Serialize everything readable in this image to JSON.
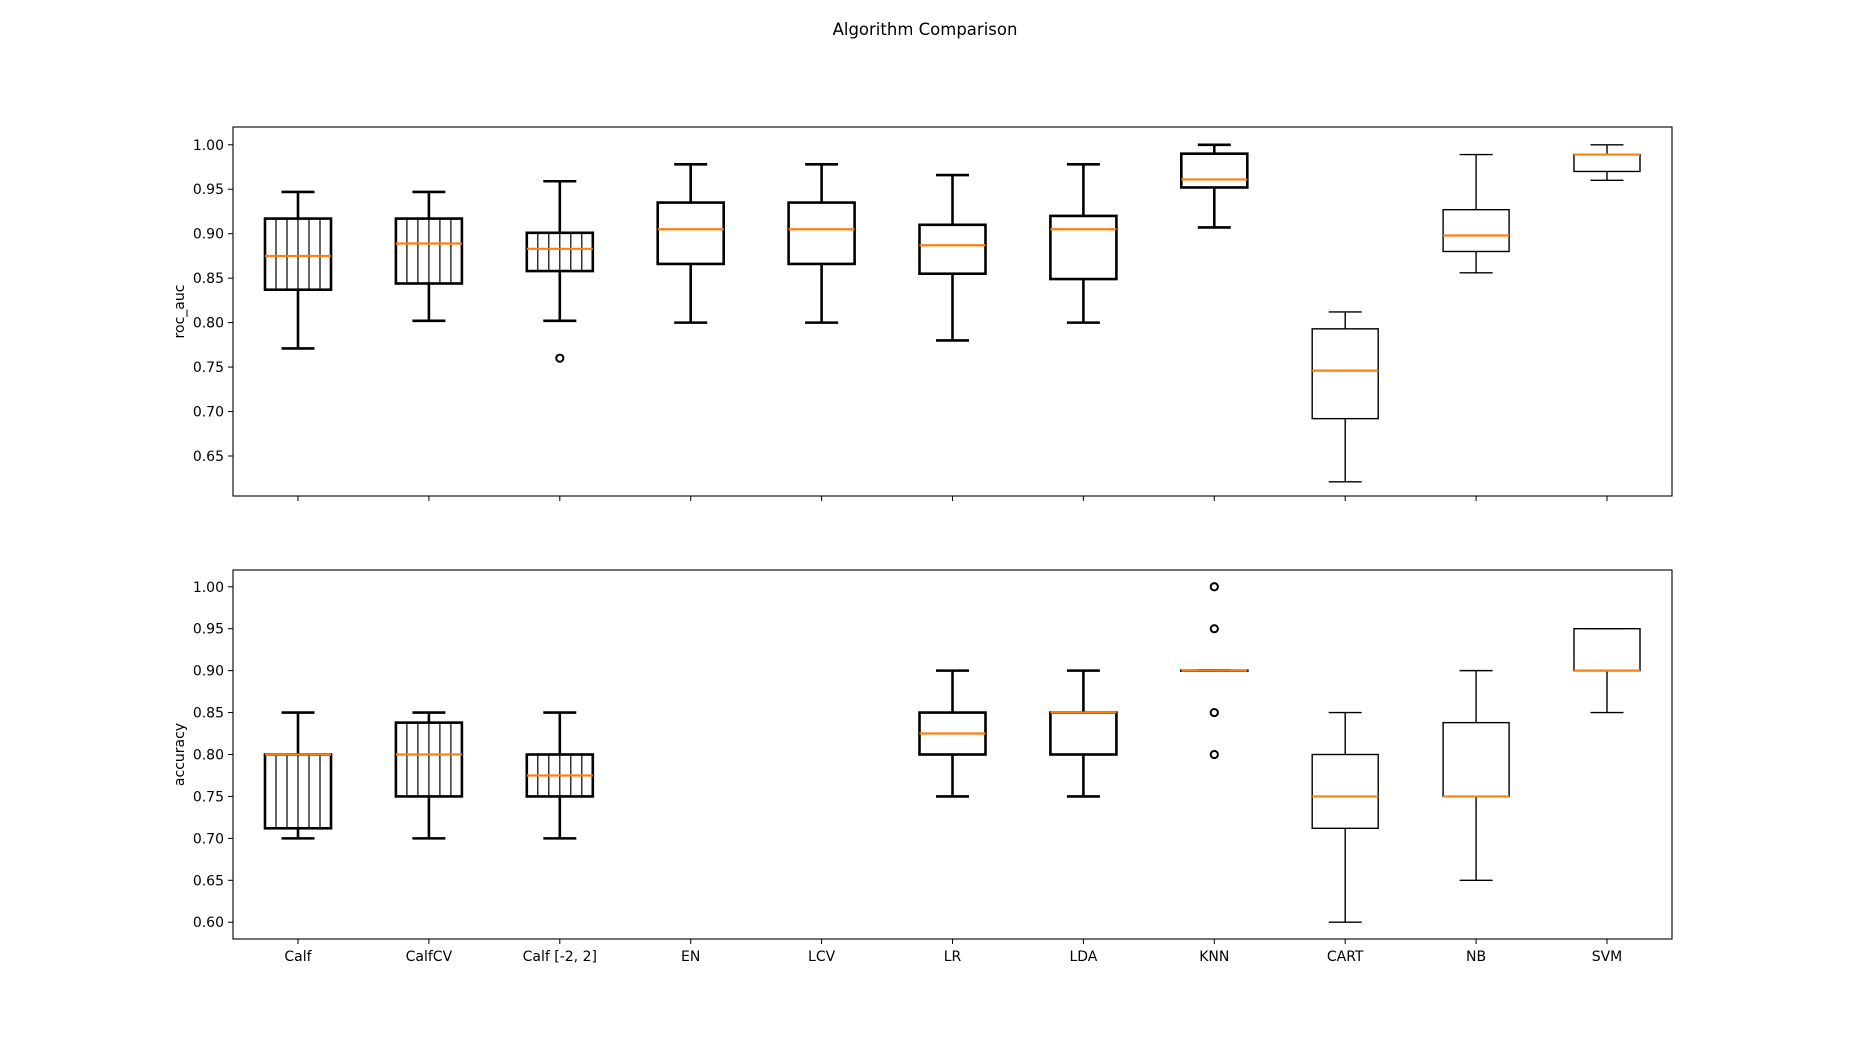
{
  "figure": {
    "title": "Algorithm Comparison"
  },
  "chart_data": [
    {
      "type": "box",
      "ylabel": "roc_auc",
      "ylim": [
        0.605,
        1.02
      ],
      "yticks": [
        0.65,
        0.7,
        0.75,
        0.8,
        0.85,
        0.9,
        0.95,
        1.0
      ],
      "ytick_labels": [
        "0.65",
        "0.70",
        "0.75",
        "0.80",
        "0.85",
        "0.90",
        "0.95",
        "1.00"
      ],
      "categories": [
        "Calf",
        "CalfCV",
        "Calf [-2, 2]",
        "EN",
        "LCV",
        "LR",
        "LDA",
        "KNN",
        "CART",
        "NB",
        "SVM"
      ],
      "show_xtick_labels": false,
      "boxes": [
        {
          "whislo": 0.771,
          "q1": 0.837,
          "med": 0.875,
          "q3": 0.917,
          "whishi": 0.947,
          "fliers": [],
          "hatch": true,
          "thick": true
        },
        {
          "whislo": 0.802,
          "q1": 0.844,
          "med": 0.889,
          "q3": 0.917,
          "whishi": 0.947,
          "fliers": [],
          "hatch": true,
          "thick": true
        },
        {
          "whislo": 0.802,
          "q1": 0.858,
          "med": 0.883,
          "q3": 0.901,
          "whishi": 0.959,
          "fliers": [
            0.76
          ],
          "hatch": true,
          "thick": true
        },
        {
          "whislo": 0.8,
          "q1": 0.866,
          "med": 0.905,
          "q3": 0.935,
          "whishi": 0.978,
          "fliers": [],
          "hatch": false,
          "thick": true
        },
        {
          "whislo": 0.8,
          "q1": 0.866,
          "med": 0.905,
          "q3": 0.935,
          "whishi": 0.978,
          "fliers": [],
          "hatch": false,
          "thick": true
        },
        {
          "whislo": 0.78,
          "q1": 0.855,
          "med": 0.887,
          "q3": 0.91,
          "whishi": 0.966,
          "fliers": [],
          "hatch": false,
          "thick": true
        },
        {
          "whislo": 0.8,
          "q1": 0.849,
          "med": 0.905,
          "q3": 0.92,
          "whishi": 0.978,
          "fliers": [],
          "hatch": false,
          "thick": true
        },
        {
          "whislo": 0.907,
          "q1": 0.952,
          "med": 0.961,
          "q3": 0.99,
          "whishi": 1.0,
          "fliers": [],
          "hatch": false,
          "thick": true
        },
        {
          "whislo": 0.621,
          "q1": 0.692,
          "med": 0.746,
          "q3": 0.793,
          "whishi": 0.812,
          "fliers": [],
          "hatch": false,
          "thick": false
        },
        {
          "whislo": 0.856,
          "q1": 0.88,
          "med": 0.898,
          "q3": 0.927,
          "whishi": 0.989,
          "fliers": [],
          "hatch": false,
          "thick": false
        },
        {
          "whislo": 0.96,
          "q1": 0.97,
          "med": 0.989,
          "q3": 0.989,
          "whishi": 1.0,
          "fliers": [],
          "hatch": false,
          "thick": false
        }
      ]
    },
    {
      "type": "box",
      "ylabel": "accuracy",
      "ylim": [
        0.58,
        1.02
      ],
      "yticks": [
        0.6,
        0.65,
        0.7,
        0.75,
        0.8,
        0.85,
        0.9,
        0.95,
        1.0
      ],
      "ytick_labels": [
        "0.60",
        "0.65",
        "0.70",
        "0.75",
        "0.80",
        "0.85",
        "0.90",
        "0.95",
        "1.00"
      ],
      "categories": [
        "Calf",
        "CalfCV",
        "Calf [-2, 2]",
        "EN",
        "LCV",
        "LR",
        "LDA",
        "KNN",
        "CART",
        "NB",
        "SVM"
      ],
      "show_xtick_labels": true,
      "boxes": [
        {
          "whislo": 0.7,
          "q1": 0.712,
          "med": 0.8,
          "q3": 0.8,
          "whishi": 0.85,
          "fliers": [],
          "hatch": true,
          "thick": true
        },
        {
          "whislo": 0.7,
          "q1": 0.75,
          "med": 0.8,
          "q3": 0.838,
          "whishi": 0.85,
          "fliers": [],
          "hatch": true,
          "thick": true
        },
        {
          "whislo": 0.7,
          "q1": 0.75,
          "med": 0.775,
          "q3": 0.8,
          "whishi": 0.85,
          "fliers": [],
          "hatch": true,
          "thick": true
        },
        null,
        null,
        {
          "whislo": 0.75,
          "q1": 0.8,
          "med": 0.825,
          "q3": 0.85,
          "whishi": 0.9,
          "fliers": [],
          "hatch": false,
          "thick": true
        },
        {
          "whislo": 0.75,
          "q1": 0.8,
          "med": 0.85,
          "q3": 0.85,
          "whishi": 0.9,
          "fliers": [],
          "hatch": false,
          "thick": true
        },
        {
          "whislo": 0.9,
          "q1": 0.9,
          "med": 0.9,
          "q3": 0.9,
          "whishi": 0.9,
          "fliers": [
            1.0,
            0.95,
            0.85,
            0.8
          ],
          "hatch": false,
          "thick": true
        },
        {
          "whislo": 0.6,
          "q1": 0.712,
          "med": 0.75,
          "q3": 0.8,
          "whishi": 0.85,
          "fliers": [],
          "hatch": false,
          "thick": false
        },
        {
          "whislo": 0.65,
          "q1": 0.75,
          "med": 0.75,
          "q3": 0.838,
          "whishi": 0.9,
          "fliers": [],
          "hatch": false,
          "thick": false
        },
        {
          "whislo": 0.85,
          "q1": 0.9,
          "med": 0.9,
          "q3": 0.95,
          "whishi": 0.95,
          "fliers": [],
          "hatch": false,
          "thick": false
        }
      ]
    }
  ],
  "colors": {
    "median": "#ff7f0e",
    "box": "#000000",
    "axes": "#000000"
  }
}
